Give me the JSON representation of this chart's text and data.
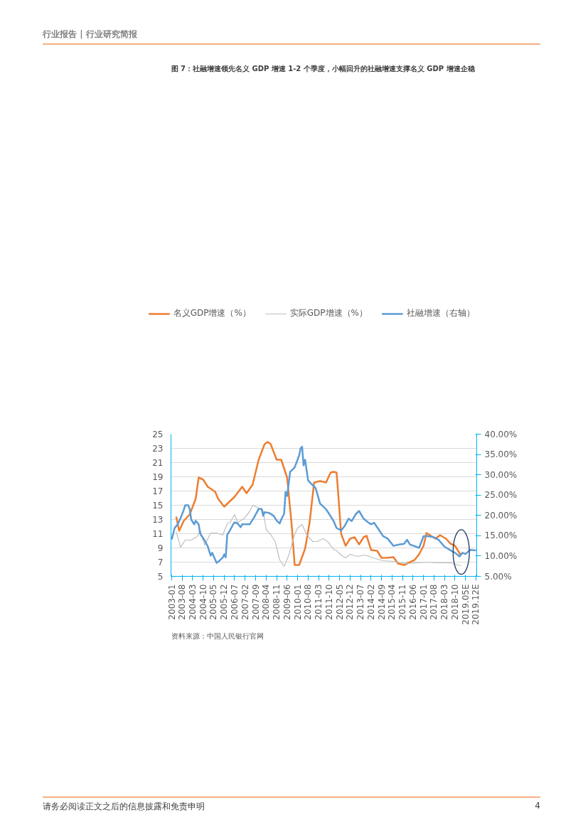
{
  "chart_data": {
    "type": "line",
    "title": "图 7：社融增速领先名义 GDP 增速 1-2 个季度，小幅回升的社融增速支撑名义 GDP 增速企稳",
    "annotations": [
      "行业报告 | 行业研究简报",
      "资料来源：中国人民银行官网",
      "请务必阅读正文之后的信息披露和免责申明",
      "4"
    ],
    "xlim": [
      "2003-01",
      "2019-12"
    ],
    "xticks": [
      {
        "value": "2003-01",
        "label": "2003-01"
      },
      {
        "value": "2003-08",
        "label": "2003-08"
      },
      {
        "value": "2004-03",
        "label": "2004-03"
      },
      {
        "value": "2004-10",
        "label": "2004-10"
      },
      {
        "value": "2005-05",
        "label": "2005-05"
      },
      {
        "value": "2005-12",
        "label": "2005-12"
      },
      {
        "value": "2006-07",
        "label": "2006-07"
      },
      {
        "value": "2007-02",
        "label": "2007-02"
      },
      {
        "value": "2007-09",
        "label": "2007-09"
      },
      {
        "value": "2008-04",
        "label": "2008-04"
      },
      {
        "value": "2008-11",
        "label": "2008-11"
      },
      {
        "value": "2009-06",
        "label": "2009-06"
      },
      {
        "value": "2010-01",
        "label": "2010-01"
      },
      {
        "value": "2010-08",
        "label": "2010-08"
      },
      {
        "value": "2011-03",
        "label": "2011-03"
      },
      {
        "value": "2011-10",
        "label": "2011-10"
      },
      {
        "value": "2012-05",
        "label": "2012-05"
      },
      {
        "value": "2012-12",
        "label": "2012-12"
      },
      {
        "value": "2013-07",
        "label": "2013-07"
      },
      {
        "value": "2014-02",
        "label": "2014-02"
      },
      {
        "value": "2014-09",
        "label": "2014-09"
      },
      {
        "value": "2015-04",
        "label": "2015-04"
      },
      {
        "value": "2015-11",
        "label": "2015-11"
      },
      {
        "value": "2016-06",
        "label": "2016-06"
      },
      {
        "value": "2017-01",
        "label": "2017-01"
      },
      {
        "value": "2017-08",
        "label": "2017-08"
      },
      {
        "value": "2018-03",
        "label": "2018-03"
      },
      {
        "value": "2018-10",
        "label": "2018-10"
      },
      {
        "value": "2019-05",
        "label": "2019.05E"
      },
      {
        "value": "2019-12",
        "label": "2019.12E"
      }
    ],
    "ylim": [
      5,
      25
    ],
    "yticks": [
      5,
      7,
      9,
      11,
      13,
      15,
      17,
      19,
      21,
      23,
      25
    ],
    "y2lim": [
      5,
      40
    ],
    "y2ticks": [
      {
        "value": 5,
        "label": "5.00%"
      },
      {
        "value": 10,
        "label": "10.00%"
      },
      {
        "value": 15,
        "label": "15.00%"
      },
      {
        "value": 20,
        "label": "20.00%"
      },
      {
        "value": 25,
        "label": "25.00%"
      },
      {
        "value": 30,
        "label": "30.00%"
      },
      {
        "value": 35,
        "label": "35.00%"
      },
      {
        "value": 40,
        "label": "40.00%"
      }
    ],
    "grid": "y",
    "legend": "top",
    "series": [
      {
        "name": "名义GDP增速（%）",
        "color": "#ed7d31",
        "x": [
          "2003-04",
          "2003-06",
          "2003-09",
          "2004-01",
          "2004-05",
          "2004-07",
          "2004-10",
          "2005-01",
          "2005-06",
          "2005-08",
          "2005-12",
          "2006-07",
          "2006-12",
          "2007-03",
          "2007-07",
          "2007-11",
          "2008-03",
          "2008-05",
          "2008-07",
          "2008-11",
          "2009-02",
          "2009-06",
          "2009-09",
          "2009-11",
          "2010-02",
          "2010-06",
          "2010-09",
          "2010-12",
          "2011-04",
          "2011-08",
          "2011-11",
          "2012-01",
          "2012-03",
          "2012-04",
          "2012-06",
          "2012-09",
          "2012-12",
          "2013-03",
          "2013-06",
          "2013-09",
          "2013-11",
          "2014-02",
          "2014-06",
          "2014-09",
          "2014-12",
          "2015-05",
          "2015-08",
          "2015-12",
          "2016-04",
          "2016-07",
          "2016-10",
          "2017-01",
          "2017-03",
          "2017-06",
          "2017-09",
          "2017-12",
          "2018-04",
          "2018-07",
          "2018-10",
          "2019-02"
        ],
        "values": [
          13.4,
          11.4,
          12.8,
          13.7,
          15.9,
          18.9,
          18.6,
          17.6,
          16.9,
          15.9,
          14.8,
          16.2,
          17.6,
          16.7,
          17.9,
          21.4,
          23.6,
          23.9,
          23.6,
          21.4,
          21.4,
          18.9,
          12.3,
          6.6,
          6.6,
          8.9,
          12.6,
          18.2,
          18.4,
          18.2,
          19.6,
          19.7,
          19.6,
          16.9,
          11.0,
          9.3,
          10.3,
          10.5,
          9.5,
          10.5,
          10.7,
          8.7,
          8.6,
          7.6,
          7.6,
          7.7,
          6.8,
          6.6,
          7.0,
          7.3,
          8.1,
          9.3,
          11.1,
          10.7,
          10.3,
          10.8,
          10.3,
          9.6,
          9.3,
          7.9
        ]
      },
      {
        "name": "实际GDP增速（%）",
        "color": "#bfbfbf",
        "x": [
          "2003-04",
          "2003-07",
          "2003-10",
          "2004-02",
          "2004-06",
          "2004-08",
          "2004-11",
          "2005-03",
          "2005-07",
          "2005-11",
          "2006-02",
          "2006-04",
          "2006-07",
          "2006-09",
          "2007-01",
          "2007-05",
          "2007-07",
          "2007-11",
          "2008-02",
          "2008-04",
          "2008-07",
          "2008-10",
          "2009-01",
          "2009-04",
          "2009-07",
          "2009-11",
          "2010-01",
          "2010-04",
          "2010-07",
          "2010-11",
          "2011-02",
          "2011-06",
          "2011-09",
          "2012-01",
          "2012-03",
          "2012-06",
          "2012-09",
          "2012-12",
          "2013-05",
          "2013-10",
          "2014-05",
          "2014-10",
          "2015-05",
          "2016-02",
          "2017-03",
          "2017-09",
          "2018-07",
          "2019-02"
        ],
        "values": [
          11.3,
          9.1,
          10.1,
          10.1,
          10.6,
          11.5,
          9.4,
          11.1,
          11.1,
          10.8,
          12.4,
          12.6,
          13.7,
          12.6,
          13.1,
          14.1,
          15.0,
          14.6,
          14.2,
          11.6,
          10.9,
          9.9,
          7.3,
          6.4,
          7.9,
          10.9,
          11.8,
          12.3,
          10.9,
          9.9,
          9.9,
          10.3,
          9.9,
          8.8,
          8.6,
          8.0,
          7.6,
          8.1,
          7.8,
          8.0,
          7.5,
          7.2,
          7.1,
          6.8,
          7.0,
          6.9,
          6.9,
          6.5
        ]
      },
      {
        "name": "社融增速（右轴）",
        "color": "#5b9bd5",
        "axis": "y2",
        "x": [
          "2003-01",
          "2003-03",
          "2003-05",
          "2003-07",
          "2003-09",
          "2003-10",
          "2003-12",
          "2004-01",
          "2004-02",
          "2004-04",
          "2004-05",
          "2004-07",
          "2004-08",
          "2004-11",
          "2005-01",
          "2005-03",
          "2005-04",
          "2005-07",
          "2005-09",
          "2005-11",
          "2005-12",
          "2006-01",
          "2006-02",
          "2006-04",
          "2006-06",
          "2006-07",
          "2006-09",
          "2006-11",
          "2006-12",
          "2007-05",
          "2007-08",
          "2007-11",
          "2008-01",
          "2008-02",
          "2008-03",
          "2008-06",
          "2008-09",
          "2008-11",
          "2009-01",
          "2009-02",
          "2009-04",
          "2009-05",
          "2009-06",
          "2009-08",
          "2009-11",
          "2010-02",
          "2010-03",
          "2010-04",
          "2010-05",
          "2010-06",
          "2010-08",
          "2010-10",
          "2011-01",
          "2011-04",
          "2011-08",
          "2011-10",
          "2012-01",
          "2012-03",
          "2012-06",
          "2012-08",
          "2012-11",
          "2013-01",
          "2013-04",
          "2013-06",
          "2013-09",
          "2013-12",
          "2014-02",
          "2014-04",
          "2014-07",
          "2014-10",
          "2015-01",
          "2015-05",
          "2015-08",
          "2015-12",
          "2016-02",
          "2016-04",
          "2016-08",
          "2016-10",
          "2017-01",
          "2017-04",
          "2017-08",
          "2017-11",
          "2018-03",
          "2018-07",
          "2018-10",
          "2019-01",
          "2019-03",
          "2019-05",
          "2019-08",
          "2019-12"
        ],
        "values": [
          14.1,
          16.9,
          17.8,
          19.4,
          21.3,
          22.5,
          22.5,
          21.6,
          19.0,
          17.8,
          18.7,
          17.8,
          15.5,
          13.8,
          12.4,
          10.1,
          10.8,
          8.3,
          8.9,
          9.6,
          10.4,
          9.7,
          15.2,
          16.4,
          17.8,
          18.3,
          18.0,
          17.1,
          17.8,
          17.8,
          19.5,
          21.6,
          21.6,
          19.9,
          20.8,
          20.6,
          19.9,
          18.7,
          18.0,
          19.0,
          20.4,
          25.8,
          24.8,
          30.7,
          31.8,
          34.8,
          36.5,
          36.9,
          32.3,
          33.7,
          28.6,
          27.8,
          26.7,
          22.9,
          21.5,
          20.4,
          18.6,
          16.9,
          16.3,
          17.2,
          19.2,
          18.6,
          20.4,
          21.1,
          19.2,
          18.3,
          17.8,
          18.2,
          16.6,
          14.9,
          14.3,
          12.5,
          12.8,
          13.0,
          14.0,
          12.8,
          12.3,
          12.0,
          14.9,
          14.9,
          14.6,
          14.0,
          12.3,
          11.4,
          10.8,
          9.9,
          10.8,
          10.5,
          11.5,
          11.4
        ]
      }
    ]
  }
}
